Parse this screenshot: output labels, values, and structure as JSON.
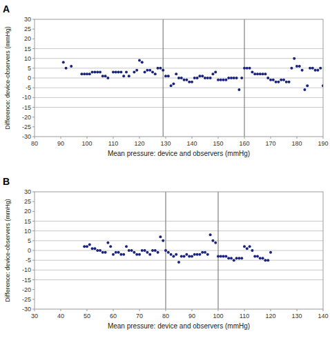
{
  "chart_data": [
    {
      "type": "scatter",
      "title": "A",
      "x": [
        91,
        92,
        94,
        98,
        99,
        100,
        101,
        102,
        103,
        104,
        105,
        106,
        107,
        108,
        110,
        111,
        112,
        113,
        114,
        115,
        116,
        118,
        119,
        120,
        121,
        122,
        123,
        124,
        125,
        126,
        127,
        128,
        129,
        130,
        131,
        132,
        133,
        134,
        135,
        136,
        137,
        138,
        139,
        140,
        141,
        142,
        143,
        144,
        145,
        146,
        147,
        148,
        149,
        150,
        151,
        152,
        153,
        154,
        155,
        156,
        157,
        158,
        159,
        160,
        161,
        162,
        163,
        164,
        165,
        166,
        167,
        168,
        169,
        170,
        171,
        172,
        173,
        174,
        175,
        176,
        177,
        178,
        179,
        180,
        181,
        182,
        183,
        184,
        185,
        186,
        187,
        188,
        189,
        190
      ],
      "values": [
        8,
        5,
        6,
        2,
        2,
        2,
        2,
        3,
        3,
        3,
        3,
        1,
        1,
        0,
        3,
        3,
        3,
        3,
        1,
        3,
        1,
        3,
        4,
        9,
        8,
        3,
        4,
        4,
        3,
        2,
        5,
        5,
        4,
        1,
        1,
        -4,
        -3,
        2,
        0,
        0,
        -1,
        -1,
        -2,
        -2,
        0,
        0,
        1,
        1,
        0,
        0,
        0,
        2,
        3,
        -1,
        -1,
        -1,
        -1,
        0,
        0,
        0,
        0,
        -6,
        0,
        5,
        5,
        5,
        3,
        2,
        2,
        2,
        2,
        2,
        0,
        -1,
        -1,
        -2,
        -2,
        -1,
        -1,
        -2,
        -2,
        5,
        10,
        6,
        6,
        4,
        -6,
        -4,
        5,
        5,
        4,
        4,
        5,
        -4
      ],
      "color": "#1a237e",
      "hlines": [
        -15,
        -10,
        -5,
        0,
        5,
        10,
        15
      ],
      "vlines": [
        129,
        160
      ],
      "xlim": [
        80,
        190
      ],
      "ylim": [
        -30,
        30
      ],
      "xticks": [
        80,
        90,
        100,
        110,
        120,
        130,
        140,
        150,
        160,
        170,
        180,
        190
      ],
      "yticks": [
        -30,
        -25,
        -20,
        -15,
        -10,
        -5,
        0,
        5,
        10,
        15,
        20,
        25,
        30
      ],
      "x_label": "Mean pressure: device and observers (mmHg)",
      "y_label": "Difference: device-observers (mmHg)"
    },
    {
      "type": "scatter",
      "title": "B",
      "x": [
        49,
        50,
        51,
        52,
        53,
        54,
        55,
        56,
        57,
        58,
        59,
        60,
        61,
        62,
        63,
        64,
        65,
        66,
        67,
        68,
        69,
        70,
        71,
        72,
        73,
        74,
        75,
        76,
        77,
        78,
        79,
        80,
        81,
        82,
        83,
        84,
        85,
        86,
        87,
        88,
        89,
        90,
        91,
        92,
        93,
        94,
        95,
        96,
        97,
        98,
        99,
        100,
        101,
        102,
        103,
        104,
        105,
        106,
        107,
        108,
        109,
        110,
        111,
        112,
        113,
        114,
        115,
        116,
        117,
        118,
        119,
        120
      ],
      "values": [
        2,
        2,
        3,
        1,
        1,
        0,
        0,
        -1,
        -1,
        4,
        2,
        -2,
        -1,
        -1,
        -2,
        -2,
        2,
        0,
        0,
        -1,
        -2,
        -2,
        0,
        0,
        -1,
        -2,
        0,
        0,
        -1,
        7,
        5,
        0,
        -1,
        -2,
        -3,
        -2,
        -6,
        -3,
        -3,
        -2,
        -3,
        -3,
        -2,
        -2,
        -2,
        -1,
        -1,
        -2,
        8,
        5,
        4,
        -3,
        -3,
        -3,
        -3,
        -4,
        -4,
        -5,
        -4,
        -4,
        -4,
        2,
        1,
        2,
        0,
        -3,
        -3,
        -4,
        -4,
        -5,
        -5,
        -1
      ],
      "color": "#1a237e",
      "hlines": [
        -15,
        -10,
        -5,
        0,
        5,
        10,
        15
      ],
      "vlines": [
        80,
        100
      ],
      "xlim": [
        30,
        140
      ],
      "ylim": [
        -30,
        30
      ],
      "xticks": [
        30,
        40,
        50,
        60,
        70,
        80,
        90,
        100,
        110,
        120,
        130,
        140
      ],
      "yticks": [
        -30,
        -25,
        -20,
        -15,
        -10,
        -5,
        0,
        5,
        10,
        15,
        20,
        25,
        30
      ],
      "x_label": "Mean pressure: device and observers (mmHg)",
      "y_label": "Difference: device-observers (mmHg)"
    }
  ]
}
